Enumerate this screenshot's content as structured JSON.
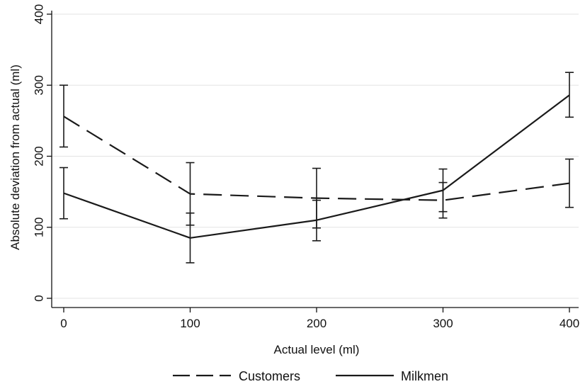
{
  "chart_data": {
    "type": "line",
    "title": "",
    "xlabel": "Actual level (ml)",
    "ylabel": "Absolute deviation from actual (ml)",
    "x": [
      0,
      100,
      200,
      300,
      400
    ],
    "x_ticks": [
      "0",
      "100",
      "200",
      "300",
      "400"
    ],
    "y_ticks": [
      "0",
      "100",
      "200",
      "300",
      "400"
    ],
    "xlim": [
      0,
      400
    ],
    "ylim": [
      0,
      400
    ],
    "grid": "horizontal",
    "legend_position": "bottom",
    "series": [
      {
        "name": "Customers",
        "style": "dashed",
        "color": "#1a1a1a",
        "values": [
          256,
          147,
          141,
          138,
          162
        ],
        "ci_low": [
          213,
          103,
          99,
          113,
          128
        ],
        "ci_high": [
          300,
          191,
          183,
          163,
          196
        ]
      },
      {
        "name": "Milkmen",
        "style": "solid",
        "color": "#1a1a1a",
        "values": [
          148,
          85,
          110,
          152,
          286
        ],
        "ci_low": [
          112,
          50,
          81,
          122,
          255
        ],
        "ci_high": [
          184,
          120,
          138,
          182,
          318
        ]
      }
    ]
  }
}
